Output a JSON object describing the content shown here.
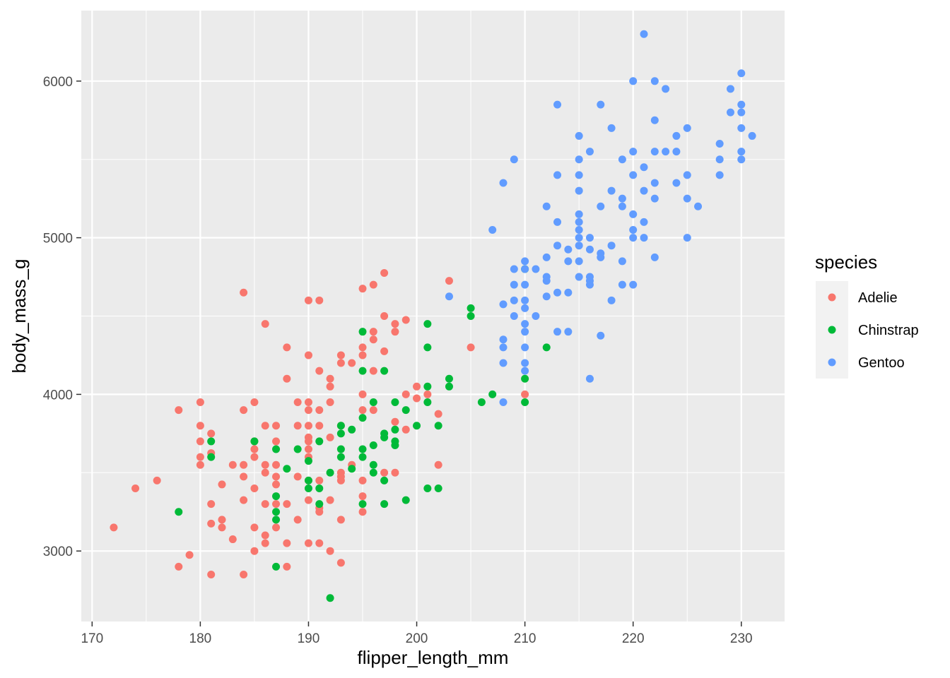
{
  "chart_data": {
    "type": "scatter",
    "xlabel": "flipper_length_mm",
    "ylabel": "body_mass_g",
    "xlim": [
      169,
      234
    ],
    "ylim": [
      2550,
      6450
    ],
    "x_ticks": [
      170,
      180,
      190,
      200,
      210,
      220,
      230
    ],
    "y_ticks": [
      3000,
      4000,
      5000,
      6000
    ],
    "grid": true,
    "legend": {
      "title": "species",
      "position": "right"
    },
    "series": [
      {
        "name": "Adelie",
        "color": "#F8766D",
        "points": [
          [
            172,
            3150
          ],
          [
            174,
            3400
          ],
          [
            176,
            3450
          ],
          [
            178,
            3900
          ],
          [
            178,
            2900
          ],
          [
            179,
            2975
          ],
          [
            180,
            3950
          ],
          [
            180,
            3800
          ],
          [
            180,
            3700
          ],
          [
            180,
            3600
          ],
          [
            180,
            3550
          ],
          [
            181,
            3750
          ],
          [
            181,
            3625
          ],
          [
            181,
            3300
          ],
          [
            181,
            3175
          ],
          [
            181,
            2850
          ],
          [
            182,
            3425
          ],
          [
            182,
            3200
          ],
          [
            182,
            3150
          ],
          [
            183,
            3550
          ],
          [
            183,
            3075
          ],
          [
            184,
            4650
          ],
          [
            184,
            3900
          ],
          [
            184,
            3550
          ],
          [
            184,
            3475
          ],
          [
            184,
            3325
          ],
          [
            184,
            2850
          ],
          [
            185,
            3950
          ],
          [
            185,
            3700
          ],
          [
            185,
            3650
          ],
          [
            185,
            3600
          ],
          [
            185,
            3400
          ],
          [
            185,
            3150
          ],
          [
            185,
            3000
          ],
          [
            186,
            4450
          ],
          [
            186,
            3800
          ],
          [
            186,
            3550
          ],
          [
            186,
            3500
          ],
          [
            186,
            3300
          ],
          [
            186,
            3100
          ],
          [
            186,
            3050
          ],
          [
            187,
            3800
          ],
          [
            187,
            3700
          ],
          [
            187,
            3550
          ],
          [
            187,
            3475
          ],
          [
            187,
            3425
          ],
          [
            187,
            3300
          ],
          [
            187,
            3150
          ],
          [
            188,
            4300
          ],
          [
            188,
            4100
          ],
          [
            188,
            3300
          ],
          [
            188,
            3050
          ],
          [
            188,
            2900
          ],
          [
            189,
            3950
          ],
          [
            189,
            3800
          ],
          [
            189,
            3475
          ],
          [
            189,
            3200
          ],
          [
            190,
            4600
          ],
          [
            190,
            4250
          ],
          [
            190,
            3950
          ],
          [
            190,
            3900
          ],
          [
            190,
            3800
          ],
          [
            190,
            3725
          ],
          [
            190,
            3700
          ],
          [
            190,
            3650
          ],
          [
            190,
            3600
          ],
          [
            190,
            3450
          ],
          [
            190,
            3325
          ],
          [
            190,
            3050
          ],
          [
            191,
            4600
          ],
          [
            191,
            4150
          ],
          [
            191,
            3900
          ],
          [
            191,
            3800
          ],
          [
            191,
            3450
          ],
          [
            191,
            3275
          ],
          [
            191,
            3250
          ],
          [
            191,
            3050
          ],
          [
            192,
            4100
          ],
          [
            192,
            4050
          ],
          [
            192,
            3950
          ],
          [
            192,
            3725
          ],
          [
            192,
            3325
          ],
          [
            192,
            3000
          ],
          [
            193,
            4250
          ],
          [
            193,
            4200
          ],
          [
            193,
            3800
          ],
          [
            193,
            3500
          ],
          [
            193,
            3475
          ],
          [
            193,
            3450
          ],
          [
            193,
            3200
          ],
          [
            193,
            2925
          ],
          [
            194,
            4200
          ],
          [
            194,
            3550
          ],
          [
            195,
            4675
          ],
          [
            195,
            4300
          ],
          [
            195,
            4250
          ],
          [
            195,
            4000
          ],
          [
            195,
            3900
          ],
          [
            195,
            3450
          ],
          [
            195,
            3350
          ],
          [
            195,
            3250
          ],
          [
            196,
            4700
          ],
          [
            196,
            4400
          ],
          [
            196,
            4350
          ],
          [
            196,
            4150
          ],
          [
            196,
            3900
          ],
          [
            197,
            4775
          ],
          [
            197,
            4500
          ],
          [
            197,
            4275
          ],
          [
            197,
            3500
          ],
          [
            198,
            4450
          ],
          [
            198,
            4400
          ],
          [
            198,
            3825
          ],
          [
            198,
            3500
          ],
          [
            199,
            4475
          ],
          [
            199,
            4000
          ],
          [
            199,
            3775
          ],
          [
            200,
            4050
          ],
          [
            200,
            3975
          ],
          [
            201,
            4000
          ],
          [
            202,
            3875
          ],
          [
            202,
            3550
          ],
          [
            203,
            4725
          ],
          [
            205,
            4300
          ],
          [
            210,
            4000
          ]
        ]
      },
      {
        "name": "Chinstrap",
        "color": "#00BA38",
        "points": [
          [
            178,
            3250
          ],
          [
            181,
            3700
          ],
          [
            181,
            3600
          ],
          [
            185,
            3700
          ],
          [
            187,
            3650
          ],
          [
            187,
            3350
          ],
          [
            187,
            3250
          ],
          [
            187,
            3200
          ],
          [
            187,
            2900
          ],
          [
            188,
            3525
          ],
          [
            189,
            3650
          ],
          [
            190,
            3575
          ],
          [
            190,
            3450
          ],
          [
            190,
            3400
          ],
          [
            191,
            3700
          ],
          [
            191,
            3400
          ],
          [
            191,
            3300
          ],
          [
            192,
            3500
          ],
          [
            192,
            2700
          ],
          [
            193,
            3800
          ],
          [
            193,
            3750
          ],
          [
            193,
            3650
          ],
          [
            193,
            3600
          ],
          [
            194,
            3775
          ],
          [
            194,
            3525
          ],
          [
            195,
            4400
          ],
          [
            195,
            4150
          ],
          [
            195,
            3850
          ],
          [
            195,
            3650
          ],
          [
            195,
            3600
          ],
          [
            195,
            3300
          ],
          [
            196,
            3950
          ],
          [
            196,
            3675
          ],
          [
            196,
            3550
          ],
          [
            196,
            3500
          ],
          [
            197,
            4150
          ],
          [
            197,
            3750
          ],
          [
            197,
            3725
          ],
          [
            197,
            3450
          ],
          [
            197,
            3300
          ],
          [
            198,
            3950
          ],
          [
            198,
            3775
          ],
          [
            198,
            3700
          ],
          [
            198,
            3675
          ],
          [
            199,
            3900
          ],
          [
            199,
            3325
          ],
          [
            200,
            3800
          ],
          [
            201,
            4450
          ],
          [
            201,
            4300
          ],
          [
            201,
            4050
          ],
          [
            201,
            3950
          ],
          [
            201,
            3400
          ],
          [
            202,
            3800
          ],
          [
            202,
            3400
          ],
          [
            203,
            4100
          ],
          [
            203,
            4050
          ],
          [
            205,
            4550
          ],
          [
            205,
            4500
          ],
          [
            206,
            3950
          ],
          [
            207,
            4000
          ],
          [
            210,
            4800
          ],
          [
            210,
            4100
          ],
          [
            210,
            3950
          ],
          [
            212,
            4300
          ]
        ]
      },
      {
        "name": "Gentoo",
        "color": "#619CFF",
        "points": [
          [
            203,
            4625
          ],
          [
            207,
            5050
          ],
          [
            208,
            5350
          ],
          [
            208,
            4575
          ],
          [
            208,
            4350
          ],
          [
            208,
            4300
          ],
          [
            208,
            4200
          ],
          [
            208,
            3950
          ],
          [
            209,
            5500
          ],
          [
            209,
            4800
          ],
          [
            209,
            4700
          ],
          [
            209,
            4600
          ],
          [
            209,
            4500
          ],
          [
            210,
            4850
          ],
          [
            210,
            4800
          ],
          [
            210,
            4700
          ],
          [
            210,
            4600
          ],
          [
            210,
            4550
          ],
          [
            210,
            4450
          ],
          [
            210,
            4400
          ],
          [
            210,
            4300
          ],
          [
            210,
            4200
          ],
          [
            210,
            4150
          ],
          [
            211,
            4800
          ],
          [
            211,
            4500
          ],
          [
            212,
            5200
          ],
          [
            212,
            4875
          ],
          [
            212,
            4750
          ],
          [
            212,
            4725
          ],
          [
            212,
            4625
          ],
          [
            213,
            5850
          ],
          [
            213,
            5400
          ],
          [
            213,
            5100
          ],
          [
            213,
            4950
          ],
          [
            213,
            4650
          ],
          [
            213,
            4400
          ],
          [
            214,
            4925
          ],
          [
            214,
            4850
          ],
          [
            214,
            4650
          ],
          [
            214,
            4400
          ],
          [
            215,
            5650
          ],
          [
            215,
            5500
          ],
          [
            215,
            5400
          ],
          [
            215,
            5300
          ],
          [
            215,
            5150
          ],
          [
            215,
            5100
          ],
          [
            215,
            5050
          ],
          [
            215,
            5000
          ],
          [
            215,
            4950
          ],
          [
            215,
            4850
          ],
          [
            215,
            4750
          ],
          [
            216,
            5550
          ],
          [
            216,
            5000
          ],
          [
            216,
            4925
          ],
          [
            216,
            4750
          ],
          [
            216,
            4725
          ],
          [
            216,
            4700
          ],
          [
            216,
            4100
          ],
          [
            217,
            5850
          ],
          [
            217,
            5200
          ],
          [
            217,
            4900
          ],
          [
            217,
            4875
          ],
          [
            217,
            4375
          ],
          [
            218,
            5700
          ],
          [
            218,
            5300
          ],
          [
            218,
            4950
          ],
          [
            218,
            4600
          ],
          [
            219,
            5500
          ],
          [
            219,
            5250
          ],
          [
            219,
            5200
          ],
          [
            219,
            4850
          ],
          [
            219,
            4700
          ],
          [
            220,
            6000
          ],
          [
            220,
            5550
          ],
          [
            220,
            5400
          ],
          [
            220,
            5150
          ],
          [
            220,
            5050
          ],
          [
            220,
            5000
          ],
          [
            220,
            4700
          ],
          [
            221,
            6300
          ],
          [
            221,
            5450
          ],
          [
            221,
            5300
          ],
          [
            221,
            5100
          ],
          [
            221,
            5000
          ],
          [
            222,
            6000
          ],
          [
            222,
            5750
          ],
          [
            222,
            5550
          ],
          [
            222,
            5350
          ],
          [
            222,
            5250
          ],
          [
            222,
            4875
          ],
          [
            223,
            5950
          ],
          [
            223,
            5550
          ],
          [
            224,
            5650
          ],
          [
            224,
            5550
          ],
          [
            224,
            5350
          ],
          [
            225,
            5700
          ],
          [
            225,
            5400
          ],
          [
            225,
            5250
          ],
          [
            225,
            5000
          ],
          [
            226,
            5200
          ],
          [
            228,
            5600
          ],
          [
            228,
            5500
          ],
          [
            228,
            5400
          ],
          [
            229,
            5950
          ],
          [
            229,
            5800
          ],
          [
            230,
            6050
          ],
          [
            230,
            5850
          ],
          [
            230,
            5800
          ],
          [
            230,
            5700
          ],
          [
            230,
            5550
          ],
          [
            230,
            5500
          ],
          [
            231,
            5650
          ]
        ]
      }
    ]
  }
}
